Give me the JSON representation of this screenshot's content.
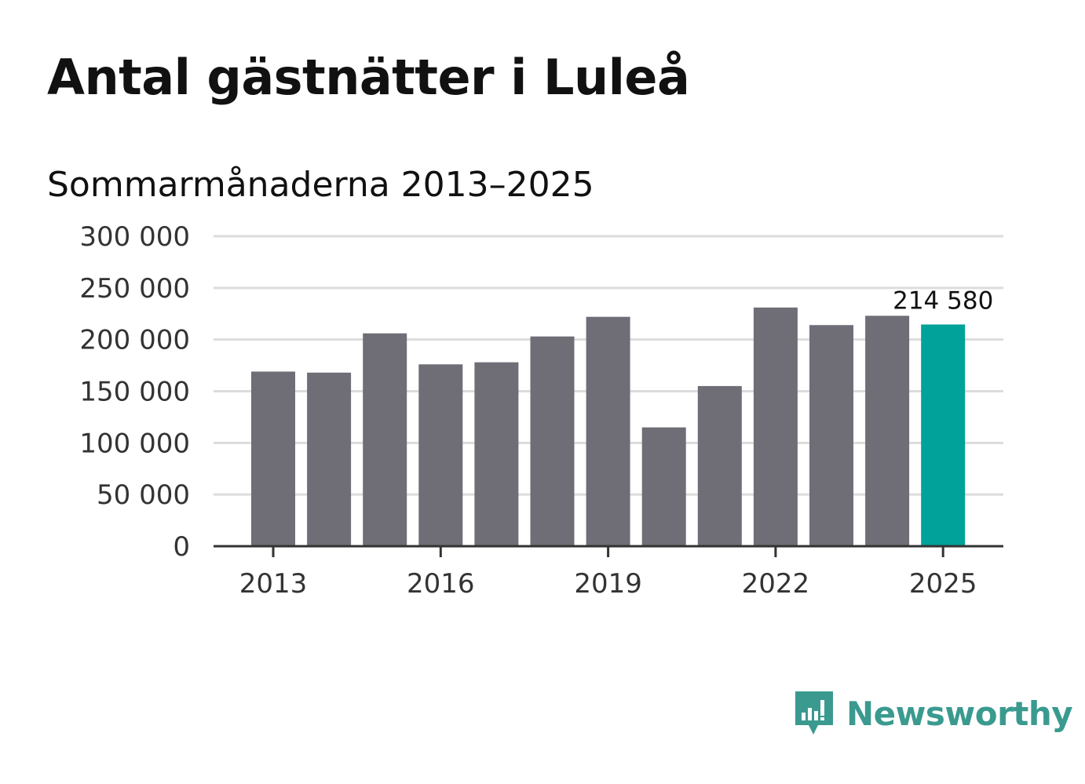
{
  "title": "Antal gästnätter i Luleå",
  "subtitle": "Sommarmånaderna 2013–2025",
  "colors": {
    "bar": "#6f6e76",
    "highlight": "#00a29a",
    "grid": "#dcdcdc",
    "axis": "#333333",
    "brand": "#3a9a8f"
  },
  "brand": {
    "name": "Newsworthy",
    "icon": "newsworthy-chart-bubble-icon"
  },
  "chart_data": {
    "type": "bar",
    "title": "Antal gästnätter i Luleå",
    "subtitle": "Sommarmånaderna 2013–2025",
    "categories": [
      "2013",
      "2014",
      "2015",
      "2016",
      "2017",
      "2018",
      "2019",
      "2020",
      "2021",
      "2022",
      "2023",
      "2024",
      "2025"
    ],
    "values": [
      169000,
      168000,
      206000,
      176000,
      178000,
      203000,
      222000,
      115000,
      155000,
      231000,
      214000,
      223000,
      214580
    ],
    "highlight_index": 12,
    "data_labels": [
      {
        "index": 12,
        "text": "214 580"
      }
    ],
    "x_tick_labels": [
      "2013",
      "2016",
      "2019",
      "2022",
      "2025"
    ],
    "y_tick_labels": [
      "0",
      "50 000",
      "100 000",
      "150 000",
      "200 000",
      "250 000",
      "300 000"
    ],
    "y_ticks": [
      0,
      50000,
      100000,
      150000,
      200000,
      250000,
      300000
    ],
    "ylim": [
      0,
      300000
    ],
    "xlabel": "",
    "ylabel": "",
    "grid": true,
    "legend": "none"
  }
}
